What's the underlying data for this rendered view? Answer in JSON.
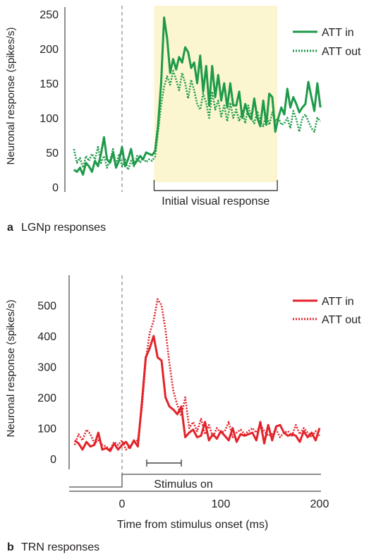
{
  "chart_data": [
    {
      "type": "line",
      "panel_letter": "a",
      "caption": "LGNp responses",
      "ylabel": "Neuronal response (spikes/s)",
      "xlabel": "",
      "ylim": [
        0,
        250
      ],
      "xlim": [
        -60,
        205
      ],
      "yticks": [
        0,
        50,
        100,
        150,
        200,
        250
      ],
      "highlight": {
        "x": [
          32,
          155
        ],
        "color": "#fbf6cf"
      },
      "bracket": {
        "x": [
          32,
          155
        ],
        "label": "Initial visual response"
      },
      "stimulus_marker_x": 0,
      "legend_position": "top-right",
      "colors": {
        "series": "#1e9a4a"
      },
      "series": [
        {
          "name": "ATT in",
          "style": "solid",
          "x": [
            -48,
            -45,
            -42,
            -39,
            -36,
            -33,
            -30,
            -27,
            -24,
            -21,
            -18,
            -15,
            -12,
            -9,
            -6,
            -3,
            0,
            3,
            6,
            9,
            12,
            15,
            18,
            21,
            24,
            27,
            30,
            33,
            36,
            39,
            42,
            45,
            48,
            51,
            54,
            57,
            60,
            63,
            66,
            69,
            72,
            75,
            78,
            81,
            84,
            87,
            90,
            93,
            96,
            99,
            102,
            105,
            108,
            111,
            114,
            117,
            120,
            123,
            126,
            129,
            132,
            135,
            138,
            141,
            144,
            147,
            150,
            153,
            156,
            159,
            162,
            165,
            168,
            171,
            174,
            177,
            180,
            183,
            186,
            189,
            192,
            195,
            198
          ],
          "y": [
            25,
            22,
            28,
            18,
            35,
            30,
            22,
            38,
            30,
            48,
            72,
            40,
            35,
            50,
            28,
            38,
            58,
            30,
            40,
            55,
            32,
            38,
            45,
            40,
            50,
            48,
            46,
            52,
            90,
            150,
            245,
            215,
            165,
            185,
            170,
            188,
            180,
            202,
            195,
            172,
            180,
            150,
            190,
            138,
            175,
            118,
            175,
            130,
            162,
            125,
            150,
            115,
            150,
            118,
            118,
            138,
            100,
            120,
            105,
            98,
            128,
            100,
            88,
            125,
            90,
            135,
            130,
            80,
            100,
            115,
            105,
            142,
            115,
            130,
            120,
            108,
            115,
            120,
            152,
            130,
            110,
            150,
            115
          ]
        },
        {
          "name": "ATT out",
          "style": "dotted",
          "x": [
            -48,
            -45,
            -42,
            -39,
            -36,
            -33,
            -30,
            -27,
            -24,
            -21,
            -18,
            -15,
            -12,
            -9,
            -6,
            -3,
            0,
            3,
            6,
            9,
            12,
            15,
            18,
            21,
            24,
            27,
            30,
            33,
            36,
            39,
            42,
            45,
            48,
            51,
            54,
            57,
            60,
            63,
            66,
            69,
            72,
            75,
            78,
            81,
            84,
            87,
            90,
            93,
            96,
            99,
            102,
            105,
            108,
            111,
            114,
            117,
            120,
            123,
            126,
            129,
            132,
            135,
            138,
            141,
            144,
            147,
            150,
            153,
            156,
            159,
            162,
            165,
            168,
            171,
            174,
            177,
            180,
            183,
            186,
            189,
            192,
            195,
            198
          ],
          "y": [
            55,
            35,
            42,
            28,
            45,
            38,
            48,
            40,
            58,
            35,
            45,
            28,
            38,
            55,
            32,
            48,
            30,
            40,
            25,
            38,
            30,
            45,
            35,
            42,
            36,
            40,
            38,
            44,
            80,
            118,
            145,
            160,
            148,
            168,
            155,
            140,
            165,
            150,
            128,
            155,
            140,
            120,
            112,
            135,
            122,
            100,
            138,
            112,
            125,
            102,
            118,
            95,
            122,
            100,
            112,
            95,
            110,
            92,
            118,
            100,
            92,
            110,
            95,
            88,
            105,
            90,
            108,
            95,
            100,
            90,
            92,
            100,
            85,
            110,
            98,
            80,
            100,
            105,
            95,
            85,
            80,
            100,
            95
          ]
        }
      ]
    },
    {
      "type": "line",
      "panel_letter": "b",
      "caption": "TRN responses",
      "ylabel": "Neuronal response (spikes/s)",
      "xlabel": "Time from stimulus onset (ms)",
      "ylim": [
        0,
        580
      ],
      "xlim": [
        -55,
        205
      ],
      "yticks": [
        0,
        100,
        200,
        300,
        400,
        500
      ],
      "xticks": [
        0,
        100,
        200
      ],
      "stimulus_label": "Stimulus on",
      "stimulus_marker_x": 0,
      "bracket": {
        "x": [
          25,
          60
        ]
      },
      "legend_position": "top-right",
      "colors": {
        "series": "#e2232a"
      },
      "series": [
        {
          "name": "ATT in",
          "style": "solid",
          "x": [
            -48,
            -44,
            -40,
            -36,
            -32,
            -28,
            -24,
            -20,
            -16,
            -12,
            -8,
            -4,
            0,
            4,
            8,
            12,
            16,
            20,
            24,
            28,
            32,
            36,
            40,
            44,
            48,
            52,
            56,
            60,
            64,
            68,
            72,
            76,
            80,
            84,
            88,
            92,
            96,
            100,
            104,
            108,
            112,
            116,
            120,
            124,
            128,
            132,
            136,
            140,
            144,
            148,
            152,
            156,
            160,
            164,
            168,
            172,
            176,
            180,
            184,
            188,
            192,
            196,
            200
          ],
          "y": [
            60,
            50,
            30,
            55,
            40,
            45,
            85,
            30,
            35,
            25,
            50,
            30,
            45,
            55,
            35,
            60,
            40,
            180,
            330,
            360,
            400,
            330,
            320,
            200,
            170,
            160,
            145,
            170,
            70,
            85,
            95,
            70,
            75,
            120,
            60,
            80,
            65,
            90,
            75,
            60,
            100,
            55,
            80,
            75,
            80,
            85,
            60,
            120,
            50,
            110,
            60,
            105,
            110,
            85,
            75,
            80,
            75,
            55,
            90,
            70,
            85,
            60,
            100
          ]
        },
        {
          "name": "ATT out",
          "style": "dotted",
          "x": [
            -48,
            -44,
            -40,
            -36,
            -32,
            -28,
            -24,
            -20,
            -16,
            -12,
            -8,
            -4,
            0,
            4,
            8,
            12,
            16,
            20,
            24,
            28,
            32,
            36,
            40,
            44,
            48,
            52,
            56,
            60,
            64,
            68,
            72,
            76,
            80,
            84,
            88,
            92,
            96,
            100,
            104,
            108,
            112,
            116,
            120,
            124,
            128,
            132,
            136,
            140,
            144,
            148,
            152,
            156,
            160,
            164,
            168,
            172,
            176,
            180,
            184,
            188,
            192,
            196,
            200
          ],
          "y": [
            45,
            80,
            60,
            95,
            80,
            50,
            60,
            45,
            40,
            30,
            55,
            45,
            60,
            30,
            40,
            55,
            60,
            160,
            320,
            410,
            450,
            520,
            500,
            420,
            310,
            220,
            175,
            140,
            200,
            100,
            120,
            90,
            130,
            80,
            110,
            70,
            100,
            85,
            90,
            120,
            70,
            85,
            95,
            80,
            90,
            100,
            85,
            110,
            90,
            75,
            80,
            95,
            70,
            85,
            90,
            75,
            110,
            80,
            100,
            85,
            70,
            90,
            75
          ]
        }
      ]
    }
  ]
}
